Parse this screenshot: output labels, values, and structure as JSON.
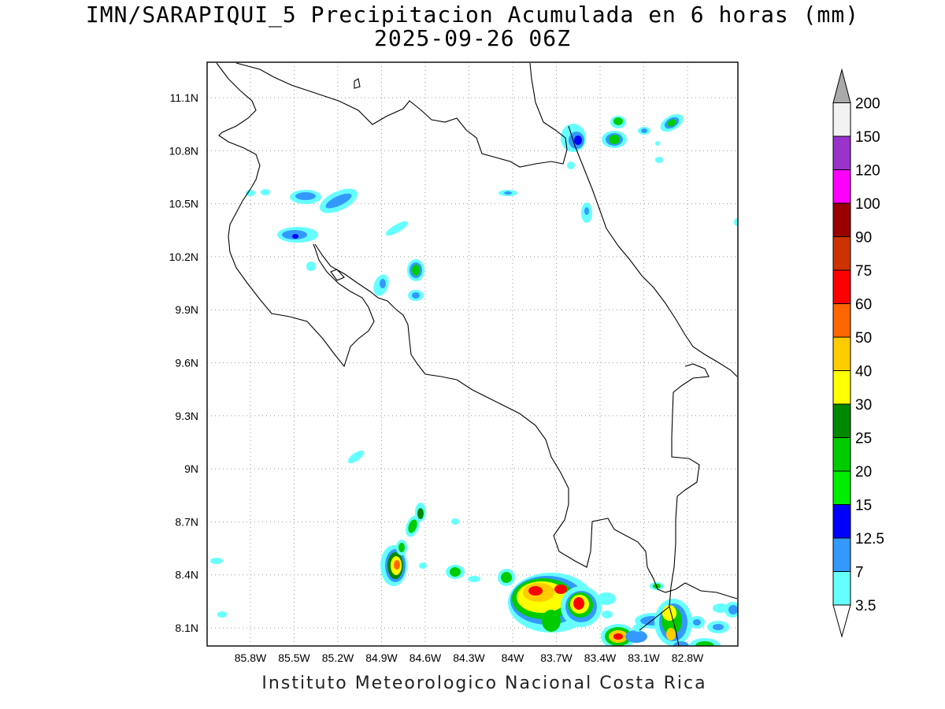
{
  "title_line1": "IMN/SARAPIQUI_5 Precipitacion Acumulada en 6 horas (mm)",
  "title_line2": "2025-09-26 06Z",
  "footer": "Instituto Meteorologico Nacional Costa Rica",
  "map": {
    "lon_range": [
      -86.0,
      -82.5
    ],
    "lat_range": [
      8.0,
      11.3
    ],
    "x_ticks": [
      "85.8W",
      "85.5W",
      "85.2W",
      "84.9W",
      "84.6W",
      "84.3W",
      "84W",
      "83.7W",
      "83.4W",
      "83.1W",
      "82.8W"
    ],
    "y_ticks": [
      "11.1N",
      "10.8N",
      "10.5N",
      "10.2N",
      "9.9N",
      "9.6N",
      "9.3N",
      "9N",
      "8.7N",
      "8.4N",
      "8.1N"
    ],
    "grid": "dotted"
  },
  "colorbar": {
    "labels": [
      "3.5",
      "7",
      "12.5",
      "15",
      "20",
      "25",
      "30",
      "40",
      "50",
      "60",
      "75",
      "90",
      "100",
      "120",
      "150",
      "200"
    ],
    "colors": [
      "#66ffff",
      "#3399ff",
      "#0000ff",
      "#00ee00",
      "#00cc00",
      "#008800",
      "#ffff00",
      "#ffcc00",
      "#ff6600",
      "#ff0000",
      "#cc3300",
      "#990000",
      "#ff00ff",
      "#9933cc",
      "#f2f2f2",
      "#aaaaaa"
    ]
  }
}
